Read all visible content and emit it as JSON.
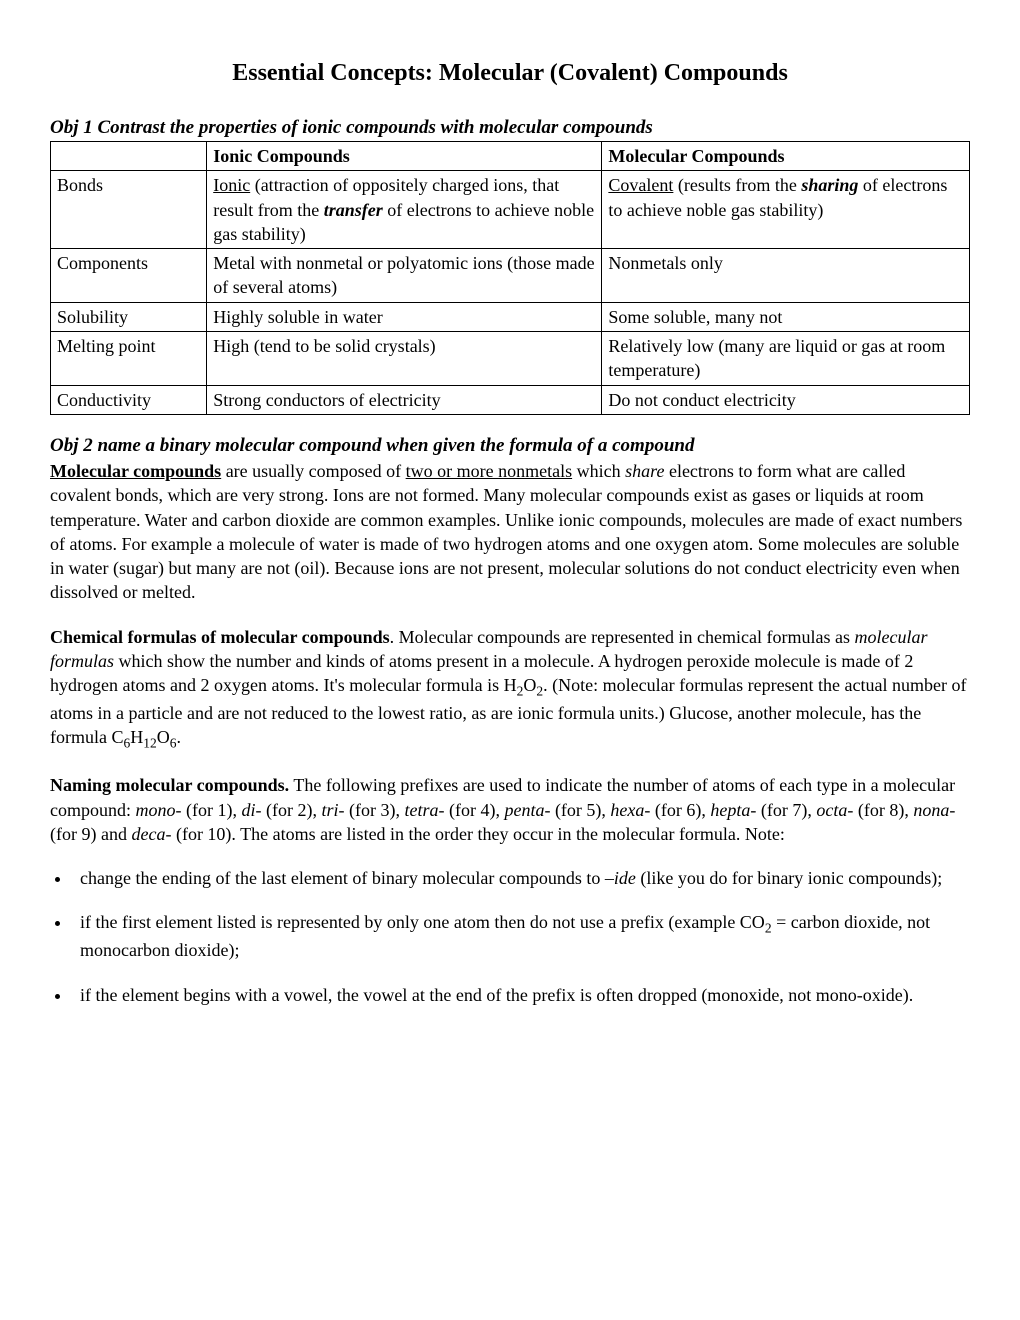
{
  "title": "Essential Concepts: Molecular (Covalent) Compounds",
  "obj1": {
    "heading": "Obj 1  Contrast the properties of ionic compounds with molecular compounds",
    "headers": {
      "prop": "",
      "ionic": "Ionic Compounds",
      "molecular": "Molecular Compounds"
    },
    "rows": {
      "bonds": {
        "prop": "Bonds",
        "ionic_pre_u": "",
        "ionic_u": "Ionic",
        "ionic_mid1": " (attraction of oppositely charged ions, that result from the ",
        "ionic_bi": "transfer",
        "ionic_mid2": " of electrons to achieve noble gas stability)",
        "mol_u": "Covalent",
        "mol_mid1": " (results from the ",
        "mol_bi": "sharing",
        "mol_mid2": " of electrons to achieve noble gas stability)"
      },
      "components": {
        "prop": "Components",
        "ionic": "Metal with nonmetal or polyatomic ions (those made of several atoms)",
        "mol": "Nonmetals only"
      },
      "solubility": {
        "prop": "Solubility",
        "ionic": "Highly soluble in water",
        "mol": "Some soluble, many not"
      },
      "melting": {
        "prop": "Melting point",
        "ionic": "High (tend to be solid crystals)",
        "mol": "Relatively low (many are liquid or gas at room temperature)"
      },
      "conductivity": {
        "prop": "Conductivity",
        "ionic": "Strong conductors of electricity",
        "mol": "Do not conduct electricity"
      }
    }
  },
  "obj2": {
    "heading": "Obj 2 name a binary molecular compound when given the formula of a compound",
    "p1": {
      "t1_bu": "Molecular compounds",
      "t2": " are usually composed of ",
      "t3_u": "two or more nonmetals",
      "t4": " which ",
      "t5_i": "share",
      "t6": " electrons to form what are called covalent bonds, which are very strong.  Ions are not formed.  Many molecular compounds exist as gases or liquids at room temperature.  Water and carbon dioxide are common examples.  Unlike ionic compounds, molecules are made of exact numbers of atoms.  For example a molecule of water is made of two hydrogen atoms and one oxygen atom.  Some molecules are soluble in water (sugar) but many are not (oil).  Because ions are not present, molecular solutions do not conduct electricity even when dissolved or melted."
    },
    "p2": {
      "t1_b": "Chemical formulas of molecular compounds",
      "t2": ".  Molecular compounds are represented in chemical formulas as ",
      "t3_i": "molecular formulas",
      "t4": " which show the number and kinds of atoms present in a molecule.  A hydrogen peroxide molecule is made of 2 hydrogen atoms and 2 oxygen atoms.  It's molecular formula is H",
      "sub1": "2",
      "t5": "O",
      "sub2": "2",
      "t6": ".  (Note: molecular formulas represent the actual number of atoms in a particle and are not reduced to the lowest ratio, as are ionic formula units.)  Glucose, another molecule, has the formula C",
      "sub3": "6",
      "t7": "H",
      "sub4": "12",
      "t8": "O",
      "sub5": "6",
      "t9": "."
    },
    "p3": {
      "t1_b": "Naming molecular compounds.",
      "t2": "  The following prefixes are used to indicate the number of atoms of each type in a molecular compound: ",
      "px1_i": "mono-",
      "px1_t": " (for 1), ",
      "px2_i": "di-",
      "px2_t": " (for 2), ",
      "px3_i": "tri",
      "px3_t": "- (for 3), ",
      "px4_i": "tetra-",
      "px4_t": " (for 4), ",
      "px5_i": "penta-",
      "px5_t": " (for 5), ",
      "px6_i": "hexa-",
      "px6_t": " (for 6), ",
      "px7_i": "hepta-",
      "px7_t": " (for 7), ",
      "px8_i": "octa-",
      "px8_t": " (for 8), ",
      "px9_i": "nona-",
      "px9_t": " (for 9) and ",
      "px10_i": "deca-",
      "px10_t": " (for 10).  The atoms are listed in the order they occur in the molecular formula.  Note:"
    },
    "bullets": {
      "b1_t1": " change the ending of the last element of binary molecular compounds to ",
      "b1_i": "–ide",
      "b1_t2": " (like you do for binary ionic compounds);",
      "b2_t1": "if the first element listed is represented by only one atom then do not use a prefix (example CO",
      "b2_sub": "2",
      "b2_t2": " = carbon dioxide, not monocarbon dioxide);",
      "b3_t1": " if the element begins with a vowel, the vowel at the end of the prefix is often dropped (monoxide, not mono-oxide)."
    }
  }
}
